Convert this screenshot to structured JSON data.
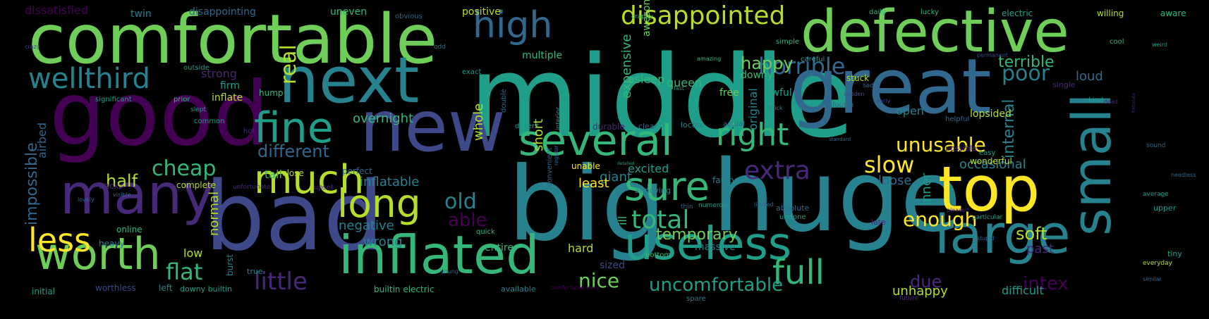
{
  "cloud": {
    "background": "#000000",
    "palette": [
      "#440154",
      "#482878",
      "#3e4989",
      "#31688e",
      "#26828e",
      "#1f9e89",
      "#35b779",
      "#6ece58",
      "#b5de2b",
      "#fde725"
    ],
    "words": [
      {
        "text": "middle",
        "color": 5
      },
      {
        "text": "big",
        "color": 4
      },
      {
        "text": "huge",
        "color": 4
      },
      {
        "text": "bad",
        "color": 2
      },
      {
        "text": "good",
        "color": 0
      },
      {
        "text": "comfortable",
        "color": 7
      },
      {
        "text": "great",
        "color": 3
      },
      {
        "text": "new",
        "color": 2
      },
      {
        "text": "defective",
        "color": 7
      },
      {
        "text": "next",
        "color": 4
      },
      {
        "text": "top",
        "color": 9
      },
      {
        "text": "many",
        "color": 1
      },
      {
        "text": "inflated",
        "color": 6
      },
      {
        "text": "several",
        "color": 6
      },
      {
        "text": "large",
        "color": 4
      },
      {
        "text": "useless",
        "color": 5
      },
      {
        "text": "small",
        "color": 4
      },
      {
        "text": "worth",
        "color": 7
      },
      {
        "text": "much",
        "color": 8
      },
      {
        "text": "sure",
        "color": 6
      },
      {
        "text": "fine",
        "color": 5
      },
      {
        "text": "long",
        "color": 8
      },
      {
        "text": "full",
        "color": 6
      },
      {
        "text": "less",
        "color": 9
      },
      {
        "text": "high",
        "color": 3
      },
      {
        "text": "wellthird",
        "color": 4
      },
      {
        "text": "right",
        "color": 6
      },
      {
        "text": "disappointed",
        "color": 8
      },
      {
        "text": "extra",
        "color": 1
      },
      {
        "text": "horrible",
        "color": 3
      },
      {
        "text": "unusable",
        "color": 9
      },
      {
        "text": "slow",
        "color": 9
      },
      {
        "text": "enough",
        "color": 9
      },
      {
        "text": "total",
        "color": 6
      },
      {
        "text": "cheap",
        "color": 6
      },
      {
        "text": "little",
        "color": 1
      },
      {
        "text": "flat",
        "color": 6
      },
      {
        "text": "uncomfortable",
        "color": 5
      },
      {
        "text": "poor",
        "color": 4
      },
      {
        "text": "happy",
        "color": 7
      },
      {
        "text": "old",
        "color": 4
      },
      {
        "text": "half",
        "color": 8
      },
      {
        "text": "nice",
        "color": 7
      },
      {
        "text": "different",
        "color": 3
      },
      {
        "text": "real",
        "color": 8
      },
      {
        "text": "able",
        "color": 0
      },
      {
        "text": "soft",
        "color": 8
      },
      {
        "text": "intex",
        "color": 0
      },
      {
        "text": "due",
        "color": 1
      },
      {
        "text": "terrible",
        "color": 6
      },
      {
        "text": "temporary",
        "color": 7
      },
      {
        "text": "occasional",
        "color": 4
      },
      {
        "text": "inflatable",
        "color": 4
      },
      {
        "text": "negative",
        "color": 4
      },
      {
        "text": "wrong",
        "color": 4
      },
      {
        "text": "past",
        "color": 1
      },
      {
        "text": "loose",
        "color": 3
      },
      {
        "text": "overnight",
        "color": 6
      },
      {
        "text": "impossible",
        "color": 3
      },
      {
        "text": "strong",
        "color": 1
      },
      {
        "text": "internal",
        "color": 4
      },
      {
        "text": "expensive",
        "color": 6
      },
      {
        "text": "dissatisfied",
        "color": 0
      },
      {
        "text": "normal",
        "color": 8
      },
      {
        "text": "short",
        "color": 8
      },
      {
        "text": "whole",
        "color": 8
      },
      {
        "text": "giant",
        "color": 4
      },
      {
        "text": "least",
        "color": 9
      },
      {
        "text": "excited",
        "color": 5
      },
      {
        "text": "unhappy",
        "color": 8
      },
      {
        "text": "hard",
        "color": 8
      },
      {
        "text": "loud",
        "color": 3
      },
      {
        "text": "difficult",
        "color": 5
      },
      {
        "text": "open",
        "color": 4
      },
      {
        "text": "lopsided",
        "color": 8
      },
      {
        "text": "inner",
        "color": 5
      },
      {
        "text": "tall",
        "color": 6
      },
      {
        "text": "low",
        "color": 8
      },
      {
        "text": "airbed",
        "color": 3
      },
      {
        "text": "entire",
        "color": 6
      },
      {
        "text": "sized",
        "color": 2
      },
      {
        "text": "massive",
        "color": 4
      },
      {
        "text": "ill",
        "color": 6
      },
      {
        "text": "queen",
        "color": 6
      },
      {
        "text": "original",
        "color": 4
      },
      {
        "text": "multiple",
        "color": 6
      },
      {
        "text": "asleep",
        "color": 6
      },
      {
        "text": "awesome",
        "color": 7
      },
      {
        "text": "positive",
        "color": 8
      },
      {
        "text": "uneven",
        "color": 6
      },
      {
        "text": "disappointing",
        "color": 3
      },
      {
        "text": "twin",
        "color": 4
      },
      {
        "text": "firm",
        "color": 5
      },
      {
        "text": "inflate",
        "color": 8
      },
      {
        "text": "hump",
        "color": 6
      },
      {
        "text": "free",
        "color": 7
      },
      {
        "text": "awful",
        "color": 5
      },
      {
        "text": "stuck",
        "color": 8
      },
      {
        "text": "downy",
        "color": 6
      },
      {
        "text": "electric",
        "color": 5
      },
      {
        "text": "willing",
        "color": 8
      },
      {
        "text": "aware",
        "color": 6
      },
      {
        "text": "wonderful",
        "color": 8
      },
      {
        "text": "online",
        "color": 6
      },
      {
        "text": "heavy",
        "color": 4
      },
      {
        "text": "burst",
        "color": 4
      },
      {
        "text": "faulty",
        "color": 4
      },
      {
        "text": "unable",
        "color": 9
      },
      {
        "text": "close",
        "color": 8
      },
      {
        "text": "perfect",
        "color": 3
      },
      {
        "text": "complete",
        "color": 8
      },
      {
        "text": "back",
        "color": 1
      },
      {
        "text": "worthless",
        "color": 2
      },
      {
        "text": "left",
        "color": 4
      },
      {
        "text": "downy builtin",
        "color": 5
      },
      {
        "text": "builtin electric",
        "color": 6
      },
      {
        "text": "available",
        "color": 4
      },
      {
        "text": "comfortable easy",
        "color": 0
      },
      {
        "text": "initial",
        "color": 5
      },
      {
        "text": "true",
        "color": 4
      },
      {
        "text": "annoying",
        "color": 4
      },
      {
        "text": "durable",
        "color": 1
      },
      {
        "text": "clear",
        "color": 3
      },
      {
        "text": "locate",
        "color": 4
      },
      {
        "text": "actual",
        "color": 3
      },
      {
        "text": "possible",
        "color": 1
      },
      {
        "text": "easy",
        "color": 5
      },
      {
        "text": "late",
        "color": 1
      },
      {
        "text": "absolute",
        "color": 3
      },
      {
        "text": "upper",
        "color": 5
      },
      {
        "text": "average",
        "color": 5
      },
      {
        "text": "tiny",
        "color": 5
      },
      {
        "text": "everyday",
        "color": 8
      },
      {
        "text": "similar",
        "color": 3
      },
      {
        "text": "future",
        "color": 1
      },
      {
        "text": "quick",
        "color": 6
      },
      {
        "text": "young",
        "color": 3
      },
      {
        "text": "upset",
        "color": 1
      },
      {
        "text": "unfortunate",
        "color": 1
      },
      {
        "text": "lovely",
        "color": 3
      },
      {
        "text": "visible",
        "color": 3
      },
      {
        "text": "hot",
        "color": 1
      },
      {
        "text": "common",
        "color": 5
      },
      {
        "text": "slept",
        "color": 5
      },
      {
        "text": "significant",
        "color": 5
      },
      {
        "text": "prior",
        "color": 6
      },
      {
        "text": "outside",
        "color": 5
      },
      {
        "text": "crazy",
        "color": 2
      },
      {
        "text": "obvious",
        "color": 3
      },
      {
        "text": "odd",
        "color": 3
      },
      {
        "text": "exact",
        "color": 5
      },
      {
        "text": "crappy",
        "color": 6
      },
      {
        "text": "amazing",
        "color": 6
      },
      {
        "text": "simple",
        "color": 6
      },
      {
        "text": "careful",
        "color": 5
      },
      {
        "text": "daily",
        "color": 6
      },
      {
        "text": "lucky",
        "color": 6
      },
      {
        "text": "cool",
        "color": 6
      },
      {
        "text": "weird",
        "color": 5
      },
      {
        "text": "permanent",
        "color": 2
      },
      {
        "text": "kind",
        "color": 5
      },
      {
        "text": "single",
        "color": 1
      },
      {
        "text": "sad",
        "color": 3
      },
      {
        "text": "sudden",
        "color": 2
      },
      {
        "text": "early",
        "color": 2
      },
      {
        "text": "helpful",
        "color": 3
      },
      {
        "text": "dead",
        "color": 1
      },
      {
        "text": "fourth",
        "color": 3
      },
      {
        "text": "thick",
        "color": 4
      },
      {
        "text": "fast",
        "color": 5
      },
      {
        "text": "interior",
        "color": 5
      },
      {
        "text": "double",
        "color": 3
      },
      {
        "text": "decent",
        "color": 5
      },
      {
        "text": "convenient",
        "color": 3
      },
      {
        "text": "regular",
        "color": 3
      },
      {
        "text": "bottom",
        "color": 6
      },
      {
        "text": "numerous",
        "color": 5
      },
      {
        "text": "thin",
        "color": 3
      },
      {
        "text": "limited",
        "color": 3
      },
      {
        "text": "undone",
        "color": 5
      },
      {
        "text": "particular",
        "color": 5
      },
      {
        "text": "spare",
        "color": 4
      },
      {
        "text": "stupid",
        "color": 3
      },
      {
        "text": "pleased",
        "color": 1
      },
      {
        "text": "sound",
        "color": 3
      },
      {
        "text": "needless",
        "color": 3
      },
      {
        "text": "detailed",
        "color": 5
      },
      {
        "text": "standard",
        "color": 3
      },
      {
        "text": "fortunate",
        "color": 1
      }
    ]
  }
}
